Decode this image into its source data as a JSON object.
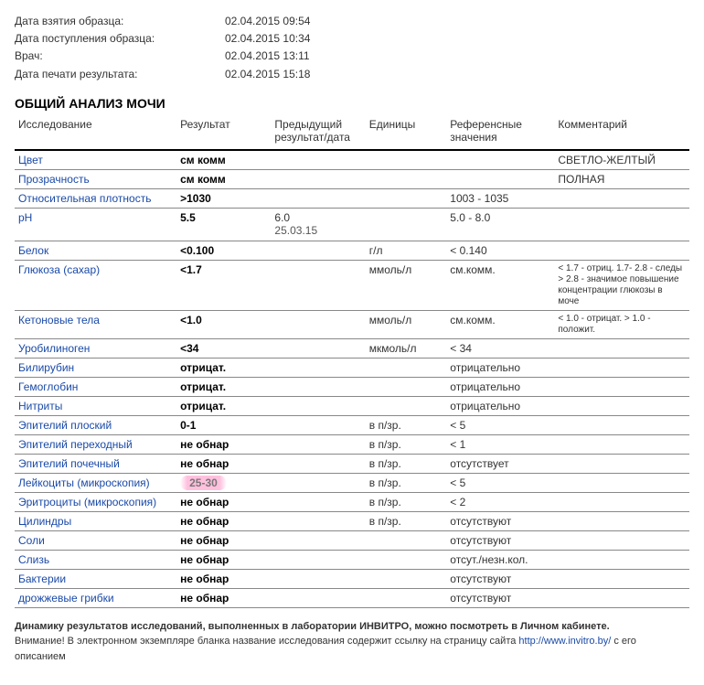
{
  "meta": [
    {
      "label": "Дата взятия образца:",
      "value": "02.04.2015 09:54"
    },
    {
      "label": "Дата поступления образца:",
      "value": "02.04.2015 10:34"
    },
    {
      "label": "Врач:",
      "value": "02.04.2015 13:11"
    },
    {
      "label": "Дата печати результата:",
      "value": "02.04.2015 15:18"
    }
  ],
  "section_title": "ОБЩИЙ АНАЛИЗ МОЧИ",
  "columns": [
    "Исследование",
    "Результат",
    "Предыдущий результат/дата",
    "Единицы",
    "Референсные значения",
    "Комментарий"
  ],
  "rows": [
    {
      "name": "Цвет",
      "result": "см комм",
      "prev": "",
      "units": "",
      "ref": "",
      "comment": "СВЕТЛО-ЖЕЛТЫЙ"
    },
    {
      "name": "Прозрачность",
      "result": "см комм",
      "prev": "",
      "units": "",
      "ref": "",
      "comment": "ПОЛНАЯ"
    },
    {
      "name": "Относительная плотность",
      "result": ">1030",
      "prev": "",
      "units": "",
      "ref": "1003 - 1035",
      "comment": ""
    },
    {
      "name": "pH",
      "result": "5.5",
      "prev": "6.0",
      "prev_date": "25.03.15",
      "units": "",
      "ref": "5.0 - 8.0",
      "comment": ""
    },
    {
      "name": "Белок",
      "result": "<0.100",
      "prev": "",
      "units": "г/л",
      "ref": "< 0.140",
      "comment": ""
    },
    {
      "name": "Глюкоза (сахар)",
      "result": "<1.7",
      "prev": "",
      "units": "ммоль/л",
      "ref": "см.комм.",
      "comment_small": "< 1.7 - отриц. 1.7- 2.8 - следы > 2.8 - значимое повышение концентрации глюкозы в моче"
    },
    {
      "name": "Кетоновые тела",
      "result": "<1.0",
      "prev": "",
      "units": "ммоль/л",
      "ref": "см.комм.",
      "comment_small": "< 1.0 - отрицат. > 1.0 - положит."
    },
    {
      "name": "Уробилиноген",
      "result": "<34",
      "prev": "",
      "units": "мкмоль/л",
      "ref": "< 34",
      "comment": ""
    },
    {
      "name": "Билирубин",
      "result": "отрицат.",
      "prev": "",
      "units": "",
      "ref": "отрицательно",
      "comment": ""
    },
    {
      "name": "Гемоглобин",
      "result": "отрицат.",
      "prev": "",
      "units": "",
      "ref": "отрицательно",
      "comment": ""
    },
    {
      "name": "Нитриты",
      "result": "отрицат.",
      "prev": "",
      "units": "",
      "ref": "отрицательно",
      "comment": ""
    },
    {
      "name": "Эпителий плоский",
      "result": "0-1",
      "prev": "",
      "units": "в п/зр.",
      "ref": "< 5",
      "comment": ""
    },
    {
      "name": "Эпителий переходный",
      "result": "не обнар",
      "prev": "",
      "units": "в п/зр.",
      "ref": "< 1",
      "comment": ""
    },
    {
      "name": "Эпителий почечный",
      "result": "не обнар",
      "prev": "",
      "units": "в п/зр.",
      "ref": "отсутствует",
      "comment": ""
    },
    {
      "name": "Лейкоциты (микроскопия)",
      "result": "25-30",
      "highlight": true,
      "prev": "",
      "units": "в п/зр.",
      "ref": "< 5",
      "comment": ""
    },
    {
      "name": "Эритроциты (микроскопия)",
      "result": "не обнар",
      "prev": "",
      "units": "в п/зр.",
      "ref": "< 2",
      "comment": ""
    },
    {
      "name": "Цилиндры",
      "result": "не обнар",
      "prev": "",
      "units": "в п/зр.",
      "ref": "отсутствуют",
      "comment": ""
    },
    {
      "name": "Соли",
      "result": "не обнар",
      "prev": "",
      "units": "",
      "ref": "отсутствуют",
      "comment": ""
    },
    {
      "name": "Слизь",
      "result": "не обнар",
      "prev": "",
      "units": "",
      "ref": "отсут./незн.кол.",
      "comment": ""
    },
    {
      "name": "Бактерии",
      "result": "не обнар",
      "prev": "",
      "units": "",
      "ref": "отсутствуют",
      "comment": ""
    },
    {
      "name": "дрожжевые грибки",
      "result": "не обнар",
      "prev": "",
      "units": "",
      "ref": "отсутствуют",
      "comment": ""
    }
  ],
  "footer": {
    "bold_line": "Динамику результатов исследований, выполненных в лаборатории ИНВИТРО, можно посмотреть в Личном кабинете.",
    "note_prefix": "Внимание! В электронном экземпляре бланка название исследования содержит ссылку на страницу сайта ",
    "link_text": "http://www.invitro.by/",
    "note_suffix": " с его описанием"
  }
}
